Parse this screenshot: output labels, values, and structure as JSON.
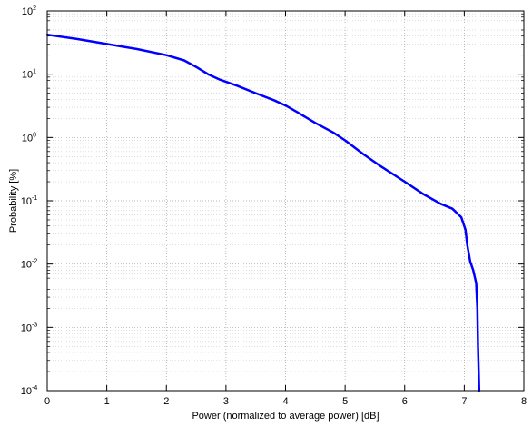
{
  "chart_data": {
    "type": "line",
    "title": "",
    "xlabel": "Power (normalized to average power) [dB]",
    "ylabel": "Probability [%]",
    "xlim": [
      0,
      8
    ],
    "ylim": [
      0.0001,
      100
    ],
    "yscale": "log",
    "grid": true,
    "grid_style": "dotted",
    "x_ticks": [
      0,
      1,
      2,
      3,
      4,
      5,
      6,
      7,
      8
    ],
    "x_tick_labels": [
      "0",
      "1",
      "2",
      "3",
      "4",
      "5",
      "6",
      "7",
      "8"
    ],
    "y_ticks": [
      0.0001,
      0.001,
      0.01,
      0.1,
      1,
      10,
      100
    ],
    "y_tick_labels": [
      {
        "base": "10",
        "exp": "-4"
      },
      {
        "base": "10",
        "exp": "-3"
      },
      {
        "base": "10",
        "exp": "-2"
      },
      {
        "base": "10",
        "exp": "-1"
      },
      {
        "base": "10",
        "exp": "0"
      },
      {
        "base": "10",
        "exp": "1"
      },
      {
        "base": "10",
        "exp": "2"
      }
    ],
    "series": [
      {
        "color": "#0000ff",
        "x": [
          0,
          0.5,
          1.0,
          1.5,
          2.0,
          2.3,
          2.5,
          2.7,
          2.9,
          3.2,
          3.5,
          3.8,
          4.0,
          4.2,
          4.5,
          4.8,
          5.0,
          5.3,
          5.6,
          6.0,
          6.3,
          6.6,
          6.8,
          6.95,
          7.02,
          7.05,
          7.1,
          7.15,
          7.2,
          7.22,
          7.23,
          7.25
        ],
        "y": [
          42,
          36,
          30,
          25,
          20,
          16.5,
          13,
          10,
          8.2,
          6.5,
          5.0,
          3.9,
          3.2,
          2.5,
          1.7,
          1.2,
          0.9,
          0.55,
          0.35,
          0.2,
          0.13,
          0.09,
          0.075,
          0.055,
          0.035,
          0.02,
          0.011,
          0.008,
          0.005,
          0.002,
          0.0005,
          0.0001
        ]
      }
    ]
  }
}
